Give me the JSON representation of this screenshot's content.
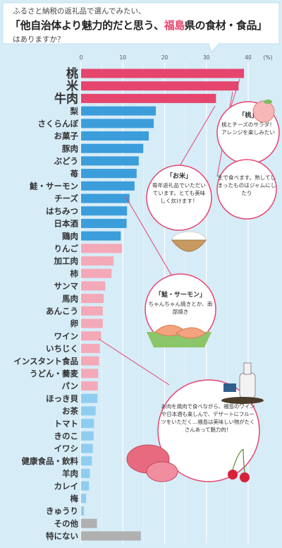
{
  "header": {
    "question_pre": "ふるさと納税の返礼品で選んでみたい、",
    "question_main_pre": "「他自治体より魅力的だと思う、",
    "question_highlight": "福島",
    "question_main_post": "県の食材・食品」",
    "question_post": "はありますか？"
  },
  "chart_data": {
    "type": "bar",
    "orientation": "horizontal",
    "xlim": [
      0,
      40
    ],
    "x_ticks": [
      "0",
      "10",
      "20",
      "30",
      "40"
    ],
    "unit": "(%)",
    "grid": true,
    "categories": [
      "桃",
      "米",
      "牛肉",
      "梨",
      "さくらんぼ",
      "お菓子",
      "豚肉",
      "ぶどう",
      "苺",
      "鮭・サーモン",
      "チーズ",
      "はちみつ",
      "日本酒",
      "鶏肉",
      "りんご",
      "加工肉",
      "柿",
      "サンマ",
      "馬肉",
      "あんこう",
      "卵",
      "ワイン",
      "いちじく",
      "インスタント食品",
      "うどん・蕎麦",
      "パン",
      "ほっき貝",
      "お茶",
      "トマト",
      "きのこ",
      "イワシ",
      "健康食品・飲料",
      "羊肉",
      "カレイ",
      "梅",
      "きゅうり",
      "その他",
      "特にない"
    ],
    "values": [
      39,
      37.7,
      32.3,
      17.9,
      17.4,
      16.2,
      14.9,
      13.8,
      13.3,
      12.8,
      11.6,
      11.0,
      10.9,
      9.5,
      9.8,
      7.8,
      7.3,
      5.8,
      5.4,
      5.2,
      5.2,
      4.8,
      4.5,
      4.3,
      4.1,
      4.0,
      3.9,
      3.5,
      3.1,
      3.0,
      2.8,
      2.6,
      2.1,
      1.9,
      1.2,
      0.7,
      3.8,
      14.3
    ],
    "colors": {
      "top": "#e6456e",
      "mid": "#3c9ddb",
      "low": "#f4a9b8",
      "lower": "#8fcdf0",
      "other": "#b0b0b0"
    }
  },
  "comments": {
    "momo": {
      "title": "「桃」",
      "text": "桃とチーズのサラダ！アレンジを楽しみたい"
    },
    "momo2": {
      "text": "生で食べます。熟してしまったものはジャムにしたり"
    },
    "kome": {
      "title": "「お米」",
      "text": "毎年返礼品でいただいています。とても美味しく炊けます！"
    },
    "salmon": {
      "title": "「鮭・サーモン」",
      "text": "ちゃんちゃん焼きとか、南部焼き"
    },
    "wine": {
      "text": "お肉を焼肉で食べながら、福島のワインや日本酒も楽しんで、デザートにフルーツをいただく…福島は美味しい物がたくさんあって魅力的！"
    }
  }
}
